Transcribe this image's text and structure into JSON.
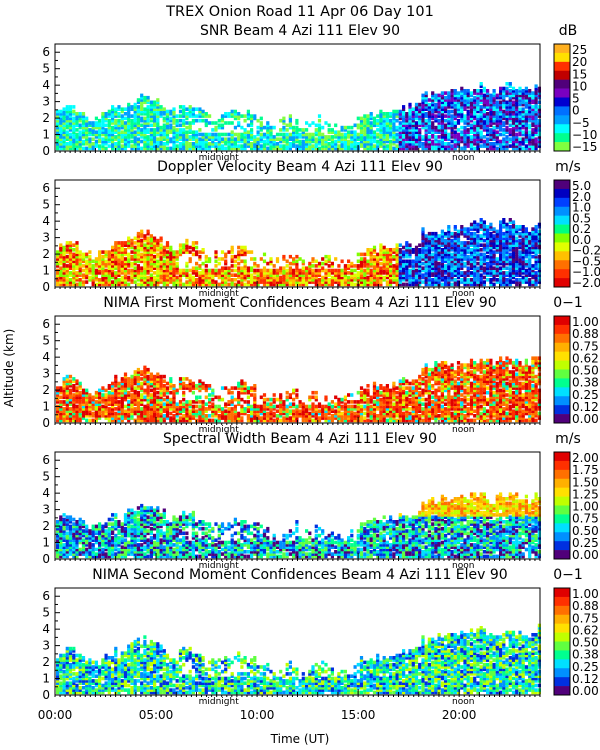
{
  "figure": {
    "title": "TREX Onion Road  11 Apr 06 Day 101",
    "ylabel": "Altitude (km)",
    "xlabel": "Time (UT)",
    "time_ticks": [
      "00:00",
      "05:00",
      "10:00",
      "15:00",
      "20:00"
    ],
    "midnight_label": "midnight",
    "noon_label": "noon"
  },
  "chart_data": [
    {
      "type": "heatmap",
      "title": "SNR Beam 4 Azi 111 Elev 90",
      "unit": "dB",
      "xlim": [
        0,
        24
      ],
      "ylim": [
        0,
        6.5
      ],
      "y_ticks": [
        "0",
        "1",
        "2",
        "3",
        "4",
        "5",
        "6"
      ],
      "colorbar_labels": [
        "25",
        "20",
        "15",
        "10",
        "5",
        "0",
        "−5",
        "−10",
        "−15"
      ],
      "colorbar_colors": [
        "#ffb020",
        "#ffe000",
        "#ff3000",
        "#c00000",
        "#50007a",
        "#7a00c0",
        "#0000d0",
        "#0070ff",
        "#00a0ff",
        "#00ffff",
        "#00ff90",
        "#80ff40"
      ]
    },
    {
      "type": "heatmap",
      "title": "Doppler Velocity Beam 4 Azi 111 Elev 90",
      "unit": "m/s",
      "xlim": [
        0,
        24
      ],
      "ylim": [
        0,
        6.5
      ],
      "y_ticks": [
        "0",
        "1",
        "2",
        "3",
        "4",
        "5",
        "6"
      ],
      "colorbar_labels": [
        "5.0",
        "2.0",
        "1.0",
        "0.5",
        "0.2",
        "0.0",
        "−0.2",
        "−0.5",
        "−1.0",
        "−2.0"
      ],
      "colorbar_colors": [
        "#50007a",
        "#0000c0",
        "#0040ff",
        "#0090ff",
        "#00e0ff",
        "#00ff80",
        "#80ff00",
        "#e0ff00",
        "#ffc000",
        "#ff7000",
        "#ff3000",
        "#e00000"
      ]
    },
    {
      "type": "heatmap",
      "title": "NIMA First Moment Confidences Beam 4 Azi 111 Elev 90",
      "unit": "0−1",
      "xlim": [
        0,
        24
      ],
      "ylim": [
        0,
        6.5
      ],
      "y_ticks": [
        "0",
        "1",
        "2",
        "3",
        "4",
        "5",
        "6"
      ],
      "colorbar_labels": [
        "1.00",
        "0.88",
        "0.75",
        "0.62",
        "0.50",
        "0.38",
        "0.25",
        "0.12",
        "0.00"
      ],
      "colorbar_colors": [
        "#e00000",
        "#ff3000",
        "#ff7000",
        "#ffb000",
        "#ffe000",
        "#c0ff00",
        "#60ff40",
        "#00ff90",
        "#00e0ff",
        "#0090ff",
        "#0030e0",
        "#50007a"
      ]
    },
    {
      "type": "heatmap",
      "title": "Spectral Width Beam 4 Azi 111 Elev 90",
      "unit": "m/s",
      "xlim": [
        0,
        24
      ],
      "ylim": [
        0,
        6.5
      ],
      "y_ticks": [
        "0",
        "1",
        "2",
        "3",
        "4",
        "5",
        "6"
      ],
      "colorbar_labels": [
        "2.00",
        "1.75",
        "1.50",
        "1.25",
        "1.00",
        "0.75",
        "0.50",
        "0.25",
        "0.00"
      ],
      "colorbar_colors": [
        "#e00000",
        "#ff3000",
        "#ff7000",
        "#ffb000",
        "#ffe000",
        "#c0ff00",
        "#60ff40",
        "#00ff90",
        "#00e0ff",
        "#0090ff",
        "#0030e0",
        "#50007a"
      ]
    },
    {
      "type": "heatmap",
      "title": "NIMA Second Moment Confidences Beam 4 Azi 111 Elev 90",
      "unit": "0−1",
      "xlim": [
        0,
        24
      ],
      "ylim": [
        0,
        6.5
      ],
      "y_ticks": [
        "0",
        "1",
        "2",
        "3",
        "4",
        "5",
        "6"
      ],
      "colorbar_labels": [
        "1.00",
        "0.88",
        "0.75",
        "0.62",
        "0.50",
        "0.38",
        "0.25",
        "0.12",
        "0.00"
      ],
      "colorbar_colors": [
        "#e00000",
        "#ff3000",
        "#ff7000",
        "#ffb000",
        "#ffe000",
        "#c0ff00",
        "#60ff40",
        "#00ff90",
        "#00e0ff",
        "#0090ff",
        "#0030e0",
        "#50007a"
      ]
    }
  ]
}
